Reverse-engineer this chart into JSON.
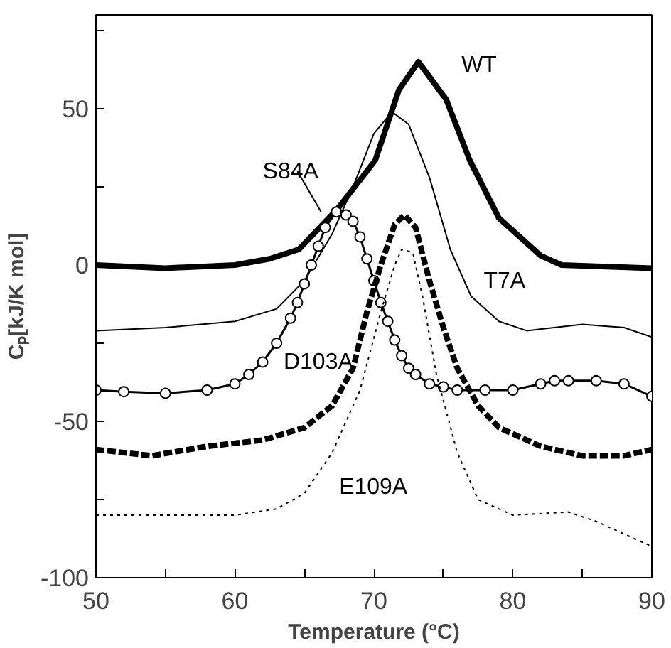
{
  "chart_data": {
    "type": "line",
    "xlabel": "Temperature (°C)",
    "ylabel": "Cₚ[kJ/K mol]",
    "xlim": [
      50,
      90
    ],
    "ylim": [
      -100,
      80
    ],
    "xticks": [
      50,
      {
        "value": 55,
        "label": null
      },
      60,
      {
        "value": 65,
        "label": null
      },
      70,
      {
        "value": 75,
        "label": null
      },
      80,
      {
        "value": 85,
        "label": null
      },
      90
    ],
    "yticks": [
      -100,
      {
        "value": -75,
        "label": null
      },
      -50,
      {
        "value": -25,
        "label": null
      },
      0,
      {
        "value": 25,
        "label": null
      },
      50,
      {
        "value": 75,
        "label": null
      }
    ],
    "series": [
      {
        "name": "WT",
        "color": "#000000",
        "line_style": "solid",
        "marker": "none",
        "x": [
          50,
          55,
          60,
          62.5,
          64.6,
          67.4,
          70.1,
          71.8,
          73.2,
          75.2,
          76.9,
          79,
          82,
          83.5,
          90
        ],
        "values": [
          0,
          -1,
          0,
          2,
          5,
          18,
          33.5,
          56,
          65,
          53,
          33.5,
          15,
          3,
          0,
          -1
        ]
      },
      {
        "name": "T7A",
        "color": "#000000",
        "line_style": "solid",
        "marker": "none",
        "x": [
          50,
          55,
          60,
          63,
          65,
          67,
          68.5,
          70,
          71.3,
          72.5,
          74,
          75.5,
          77,
          79,
          81,
          85,
          88,
          90
        ],
        "values": [
          -21,
          -20,
          -18,
          -14,
          -5,
          10,
          25,
          42,
          49,
          45,
          28,
          5,
          -10,
          -18,
          -21,
          -19,
          -20,
          -23
        ]
      },
      {
        "name": "S84A",
        "color": "#000000",
        "line_style": "solid",
        "marker": "circle",
        "x": [
          50,
          52,
          55,
          58,
          60,
          61,
          62,
          63,
          64,
          64.5,
          65,
          65.5,
          66,
          66.5,
          67.3,
          68,
          68.5,
          69,
          69.5,
          70,
          70.5,
          71,
          71.5,
          72,
          72.5,
          73,
          74,
          75,
          76,
          78,
          80,
          82,
          83,
          84,
          86,
          88,
          90
        ],
        "values": [
          -40,
          -40.5,
          -41,
          -40,
          -38,
          -35,
          -31,
          -25,
          -17,
          -12,
          -6,
          0,
          6,
          12,
          17,
          16,
          14,
          9,
          2,
          -5,
          -12,
          -18,
          -24,
          -29,
          -33,
          -35,
          -38,
          -39,
          -40,
          -40,
          -40,
          -38,
          -37,
          -37,
          -37,
          -38,
          -42
        ]
      },
      {
        "name": "D103A",
        "color": "#000000",
        "line_style": "dashed",
        "marker": "none",
        "x": [
          50,
          54,
          58,
          62,
          65,
          67,
          68.5,
          69.5,
          70.5,
          71.5,
          72.2,
          73,
          74,
          75,
          76,
          77.5,
          79,
          82,
          85,
          88,
          90
        ],
        "values": [
          -59,
          -61,
          -58,
          -56,
          -52,
          -45,
          -33,
          -15,
          0,
          13,
          16,
          12,
          -5,
          -20,
          -33,
          -45,
          -52,
          -58,
          -61,
          -61,
          -59
        ]
      },
      {
        "name": "E109A",
        "color": "#000000",
        "line_style": "dotted",
        "marker": "none",
        "x": [
          50,
          55,
          60,
          63,
          65,
          67,
          69,
          70.5,
          71.5,
          72,
          72.8,
          73.5,
          74.5,
          76,
          77.5,
          80,
          84,
          86,
          88,
          90
        ],
        "values": [
          -80,
          -80,
          -80,
          -78,
          -73,
          -60,
          -40,
          -15,
          0,
          5,
          4,
          -10,
          -35,
          -60,
          -75,
          -80,
          -79,
          -82,
          -86,
          -90
        ]
      }
    ]
  }
}
